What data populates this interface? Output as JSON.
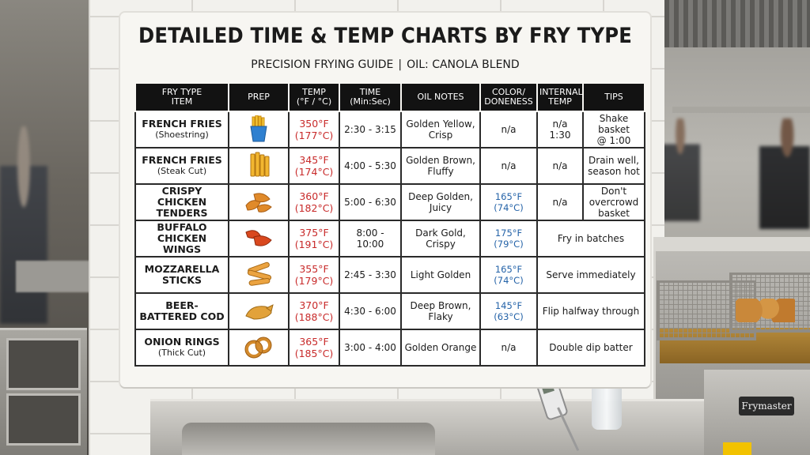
{
  "chart": {
    "title": "DETAILED TIME & TEMP CHARTS BY FRY TYPE",
    "subtitle_left": "PRECISION FRYING GUIDE",
    "subtitle_sep": "|",
    "subtitle_right": "OIL: CANOLA BLEND",
    "headers": {
      "item_line1": "FRY TYPE",
      "item_line2": "ITEM",
      "prep": "PREP",
      "temp_line1": "TEMP",
      "temp_line2": "(°F / °C)",
      "time_line1": "TIME",
      "time_line2": "(Min:Sec)",
      "oil": "OIL NOTES",
      "color_line1": "COLOR/",
      "color_line2": "DONENESS",
      "internal_line1": "INTERNAL",
      "internal_line2": "TEMP",
      "tips": "TIPS"
    },
    "rows": [
      {
        "name": "FRENCH FRIES",
        "sub": "(Shoestring)",
        "icon": "fries-icon",
        "temp_f": "350°F",
        "temp_c": "(177°C)",
        "time": "2:30 - 3:15",
        "oil_1": "Golden Yellow,",
        "oil_2": "Crisp",
        "color": "n/a",
        "internal_1": "n/a",
        "internal_2": "1:30",
        "tip_1": "Shake basket",
        "tip_2": "@ 1:00"
      },
      {
        "name": "FRENCH FRIES",
        "sub": "(Steak Cut)",
        "icon": "steak-fries-icon",
        "temp_f": "345°F",
        "temp_c": "(174°C)",
        "time": "4:00 - 5:30",
        "oil_1": "Golden Brown,",
        "oil_2": "Fluffy",
        "color": "n/a",
        "internal_1": "n/a",
        "internal_2": "",
        "tip_1": "Drain well,",
        "tip_2": "season hot"
      },
      {
        "name": "CRISPY CHICKEN TENDERS",
        "sub": "",
        "icon": "chicken-tenders-icon",
        "temp_f": "360°F",
        "temp_c": "(182°C)",
        "time": "5:00 - 6:30",
        "oil_1": "Deep Golden,",
        "oil_2": "Juicy",
        "itemp_f": "165°F",
        "itemp_c": "(74°C)",
        "internal_1": "n/a",
        "internal_2": "",
        "tip_1": "Don't overcrowd",
        "tip_2": "basket"
      },
      {
        "name": "BUFFALO CHICKEN WINGS",
        "sub": "",
        "icon": "chicken-wings-icon",
        "temp_f": "375°F",
        "temp_c": "(191°C)",
        "time": "8:00 - 10:00",
        "oil_1": "Dark Gold,",
        "oil_2": "Crispy",
        "itemp_f": "175°F",
        "itemp_c": "(79°C)",
        "tip": "Fry in batches"
      },
      {
        "name": "MOZZARELLA STICKS",
        "sub": "",
        "icon": "mozzarella-sticks-icon",
        "temp_f": "355°F",
        "temp_c": "(179°C)",
        "time": "2:45 - 3:30",
        "oil_1": "Light Golden",
        "oil_2": "",
        "itemp_f": "165°F",
        "itemp_c": "(74°C)",
        "tip": "Serve immediately"
      },
      {
        "name": "BEER-BATTERED COD",
        "sub": "",
        "icon": "battered-cod-icon",
        "temp_f": "370°F",
        "temp_c": "(188°C)",
        "time": "4:30 - 6:00",
        "oil_1": "Deep Brown,",
        "oil_2": "Flaky",
        "itemp_f": "145°F",
        "itemp_c": "(63°C)",
        "tip": "Flip halfway through"
      },
      {
        "name": "ONION RINGS",
        "sub": "(Thick Cut)",
        "icon": "onion-rings-icon",
        "temp_f": "365°F",
        "temp_c": "(185°C)",
        "time": "3:00 - 4:00",
        "oil_1": "Golden Orange",
        "oil_2": "",
        "color": "n/a",
        "tip": "Double dip batter"
      }
    ]
  },
  "fryer_brand": "Frymaster",
  "colors": {
    "temp": "#c82a2a",
    "internal_temp": "#2563a8",
    "header_bg": "#121212"
  }
}
